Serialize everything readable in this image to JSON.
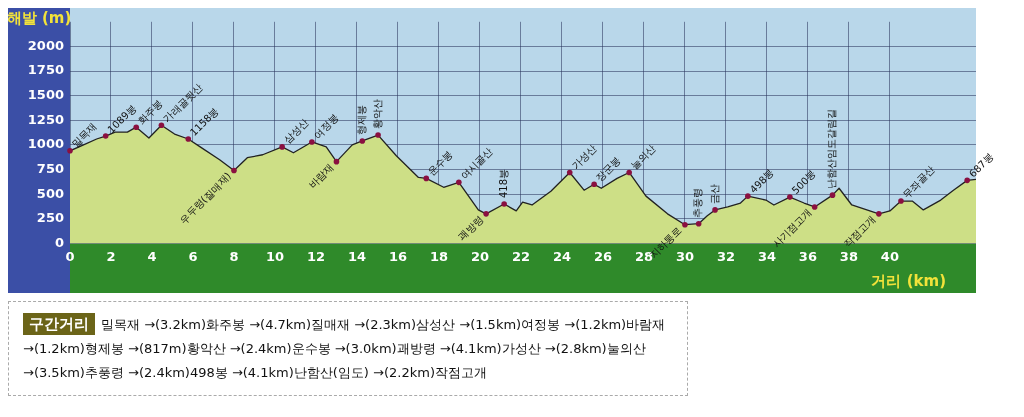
{
  "chart_data": {
    "type": "area",
    "xlabel": "거리 (km)",
    "ylabel": "해발 (m)",
    "x": [
      0,
      0.66,
      1.3,
      1.74,
      2.2,
      2.8,
      3.23,
      3.85,
      4.46,
      5.1,
      5.77,
      6.35,
      7.3,
      8.0,
      8.65,
      9.4,
      10.35,
      10.9,
      11.8,
      12.5,
      13.0,
      13.77,
      14.26,
      15.03,
      15.92,
      17.0,
      17.38,
      18.23,
      18.97,
      19.92,
      20.3,
      21.18,
      21.77,
      22.08,
      22.54,
      23.46,
      24.38,
      25.08,
      25.57,
      25.92,
      26.69,
      27.28,
      28.1,
      29.15,
      30.0,
      30.67,
      31.09,
      31.47,
      32.09,
      32.71,
      33.07,
      33.95,
      34.34,
      35.12,
      35.81,
      36.33,
      37.2,
      37.52,
      38.14,
      39.46,
      40.0,
      40.54,
      41.09,
      41.63,
      42.48,
      43.1,
      43.77,
      44.2
    ],
    "series": [
      {
        "color": "#cddf86",
        "values": [
          940,
          1000,
          1060,
          1090,
          1130,
          1130,
          1180,
          1070,
          1200,
          1110,
          1060,
          980,
          850,
          740,
          870,
          900,
          980,
          920,
          1030,
          980,
          830,
          1000,
          1040,
          1100,
          890,
          670,
          660,
          570,
          620,
          340,
          300,
          400,
          330,
          420,
          390,
          530,
          720,
          540,
          600,
          560,
          660,
          720,
          480,
          300,
          190,
          200,
          280,
          340,
          370,
          410,
          480,
          440,
          390,
          470,
          410,
          370,
          490,
          560,
          390,
          300,
          330,
          430,
          430,
          340,
          440,
          540,
          640,
          650
        ]
      }
    ],
    "xlim": [
      0,
      44.2
    ],
    "ylim": [
      0,
      2250
    ],
    "xticks": [
      0,
      2,
      4,
      6,
      8,
      10,
      12,
      14,
      16,
      18,
      20,
      22,
      24,
      26,
      28,
      30,
      32,
      34,
      36,
      38,
      40
    ],
    "yticks": [
      0,
      250,
      500,
      750,
      1000,
      1250,
      1500,
      1750,
      2000
    ],
    "grid": true,
    "legend": false,
    "annotations": [
      {
        "text": "밀목재",
        "x": 0,
        "y": 940
      },
      {
        "text": "1089봉",
        "x": 1.74,
        "y": 1090
      },
      {
        "text": "화주봉",
        "x": 3.23,
        "y": 1180
      },
      {
        "text": "가래골뒷산",
        "x": 4.46,
        "y": 1200
      },
      {
        "text": "1158봉",
        "x": 5.77,
        "y": 1060
      },
      {
        "text": "우두령(질매재)",
        "x": 8.0,
        "y": 740
      },
      {
        "text": "삼성산",
        "x": 10.35,
        "y": 980
      },
      {
        "text": "여정봉",
        "x": 11.8,
        "y": 1030
      },
      {
        "text": "바람재",
        "x": 13.0,
        "y": 830
      },
      {
        "text": "형제봉",
        "x": 14.26,
        "y": 1040
      },
      {
        "text": "황악산",
        "x": 15.03,
        "y": 1100
      },
      {
        "text": "운수봉",
        "x": 17.38,
        "y": 660
      },
      {
        "text": "여시골산",
        "x": 18.97,
        "y": 620
      },
      {
        "text": "괘방령",
        "x": 20.3,
        "y": 300
      },
      {
        "text": "418봉",
        "x": 21.18,
        "y": 400
      },
      {
        "text": "가성산",
        "x": 24.38,
        "y": 720
      },
      {
        "text": "장군봉",
        "x": 25.57,
        "y": 600
      },
      {
        "text": "눌의산",
        "x": 27.28,
        "y": 720
      },
      {
        "text": "지하통로",
        "x": 30.0,
        "y": 190
      },
      {
        "text": "추풍령",
        "x": 30.67,
        "y": 200
      },
      {
        "text": "금산",
        "x": 31.47,
        "y": 340
      },
      {
        "text": "498봉",
        "x": 33.07,
        "y": 480
      },
      {
        "text": "500봉",
        "x": 35.12,
        "y": 470
      },
      {
        "text": "사기점고개",
        "x": 36.33,
        "y": 370
      },
      {
        "text": "난함산임도갈림길",
        "x": 37.2,
        "y": 490
      },
      {
        "text": "작점고개",
        "x": 39.46,
        "y": 300
      },
      {
        "text": "무좌골산",
        "x": 40.54,
        "y": 430
      },
      {
        "text": "687봉",
        "x": 43.77,
        "y": 640
      },
      "구간거리",
      "밀목재 →(3.2km)화주봉 →(4.7km)질매재 →(2.3km)삼성산 →(1.5km)여정봉 →(1.2km)바람재 →(1.2km)형제봉 →(817m)황악산 →(2.4km)운수봉 →(3.0km)괘방령 →(4.1km)가성산 →(2.8km)눌의산 →(3.5km)추풍령 →(2.4km)498봉 →(4.1km)난함산(임도) →(2.2km)작점고개"
    ]
  }
}
